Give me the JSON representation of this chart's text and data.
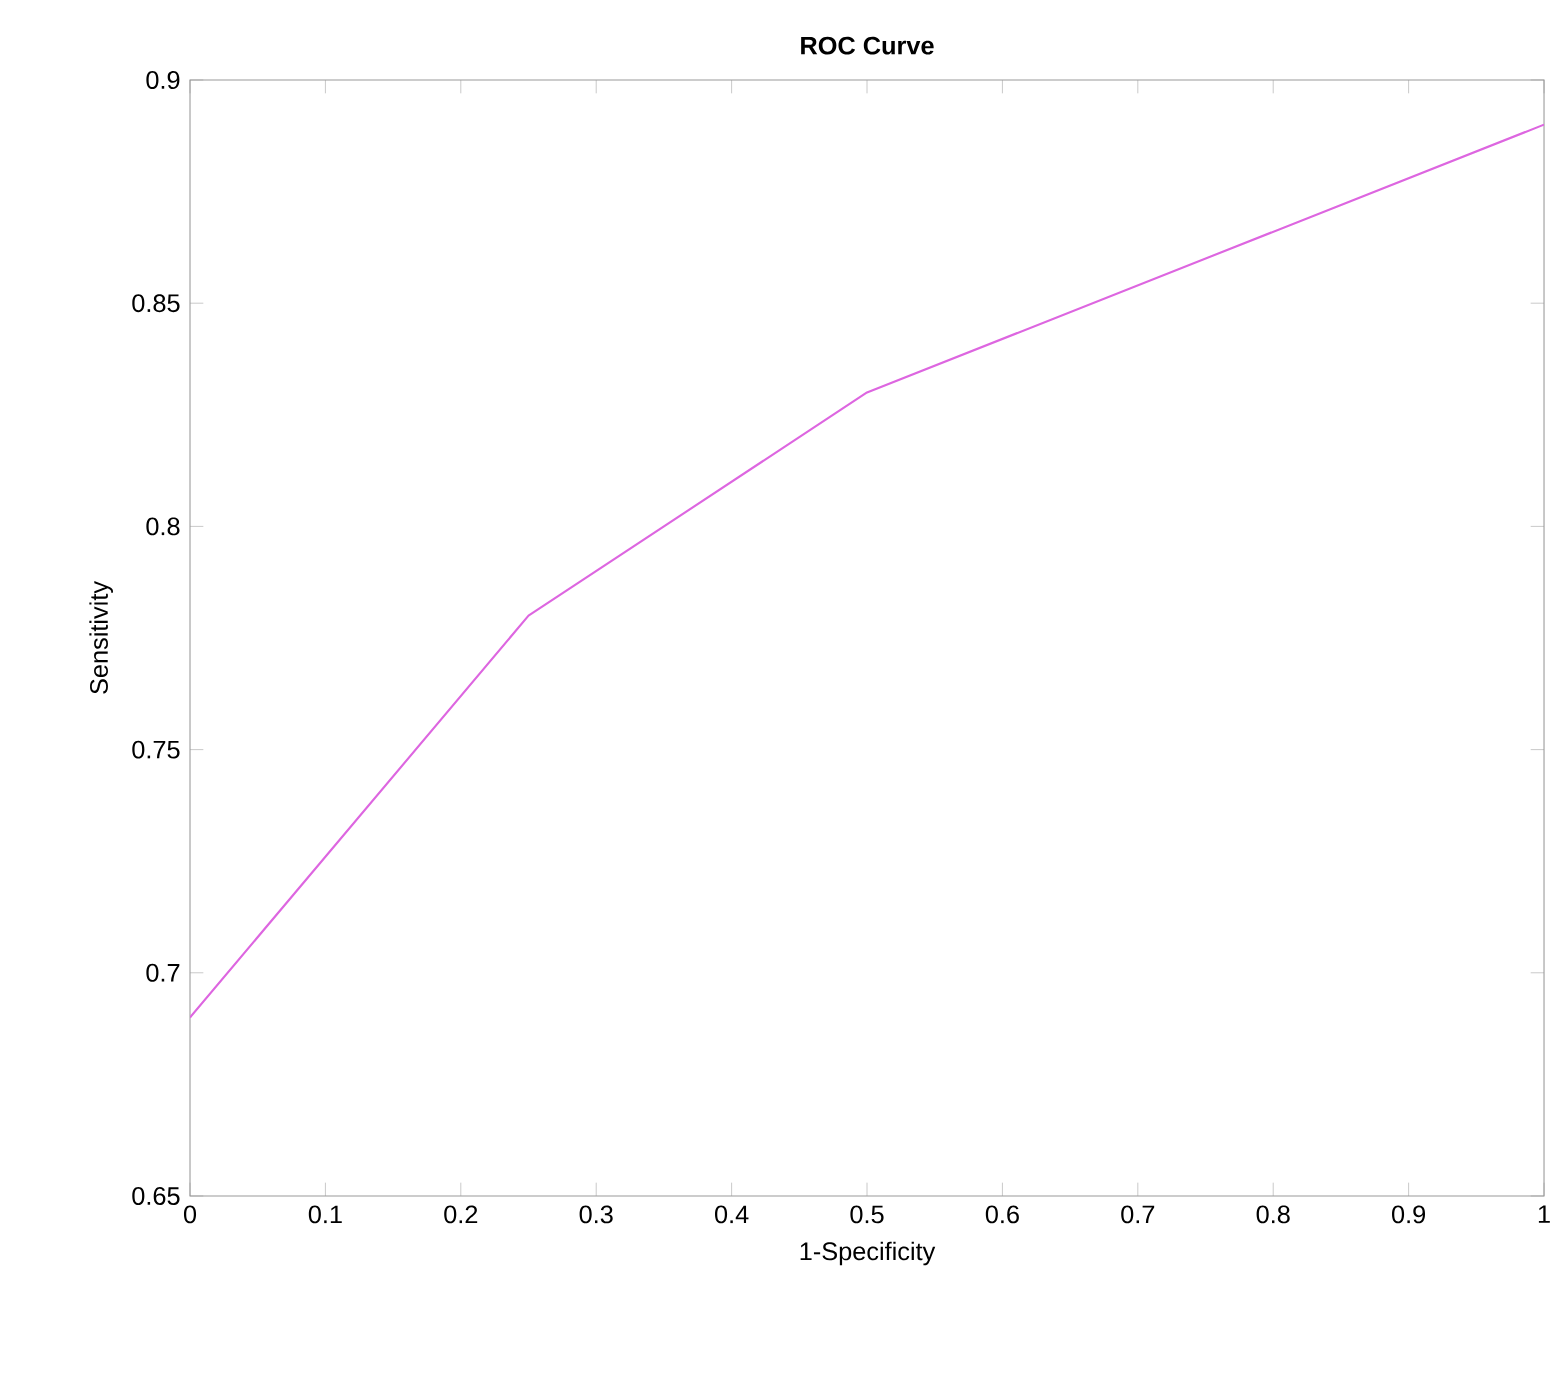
{
  "chart_data": {
    "type": "line",
    "title": "ROC Curve",
    "xlabel": "1-Specificity",
    "ylabel": "Sensitivity",
    "x": [
      0,
      0.25,
      0.5,
      1
    ],
    "series": [
      {
        "color": "#dd66e0",
        "values": [
          0.69,
          0.78,
          0.83,
          0.89
        ]
      }
    ],
    "xlim": [
      0,
      1
    ],
    "ylim": [
      0.65,
      0.9
    ],
    "xticks": [
      0,
      0.1,
      0.2,
      0.3,
      0.4,
      0.5,
      0.6,
      0.7,
      0.8,
      0.9,
      1
    ],
    "yticks": [
      0.65,
      0.7,
      0.75,
      0.8,
      0.85,
      0.9
    ],
    "marker": "none",
    "line_style": "solid",
    "grid": false
  }
}
